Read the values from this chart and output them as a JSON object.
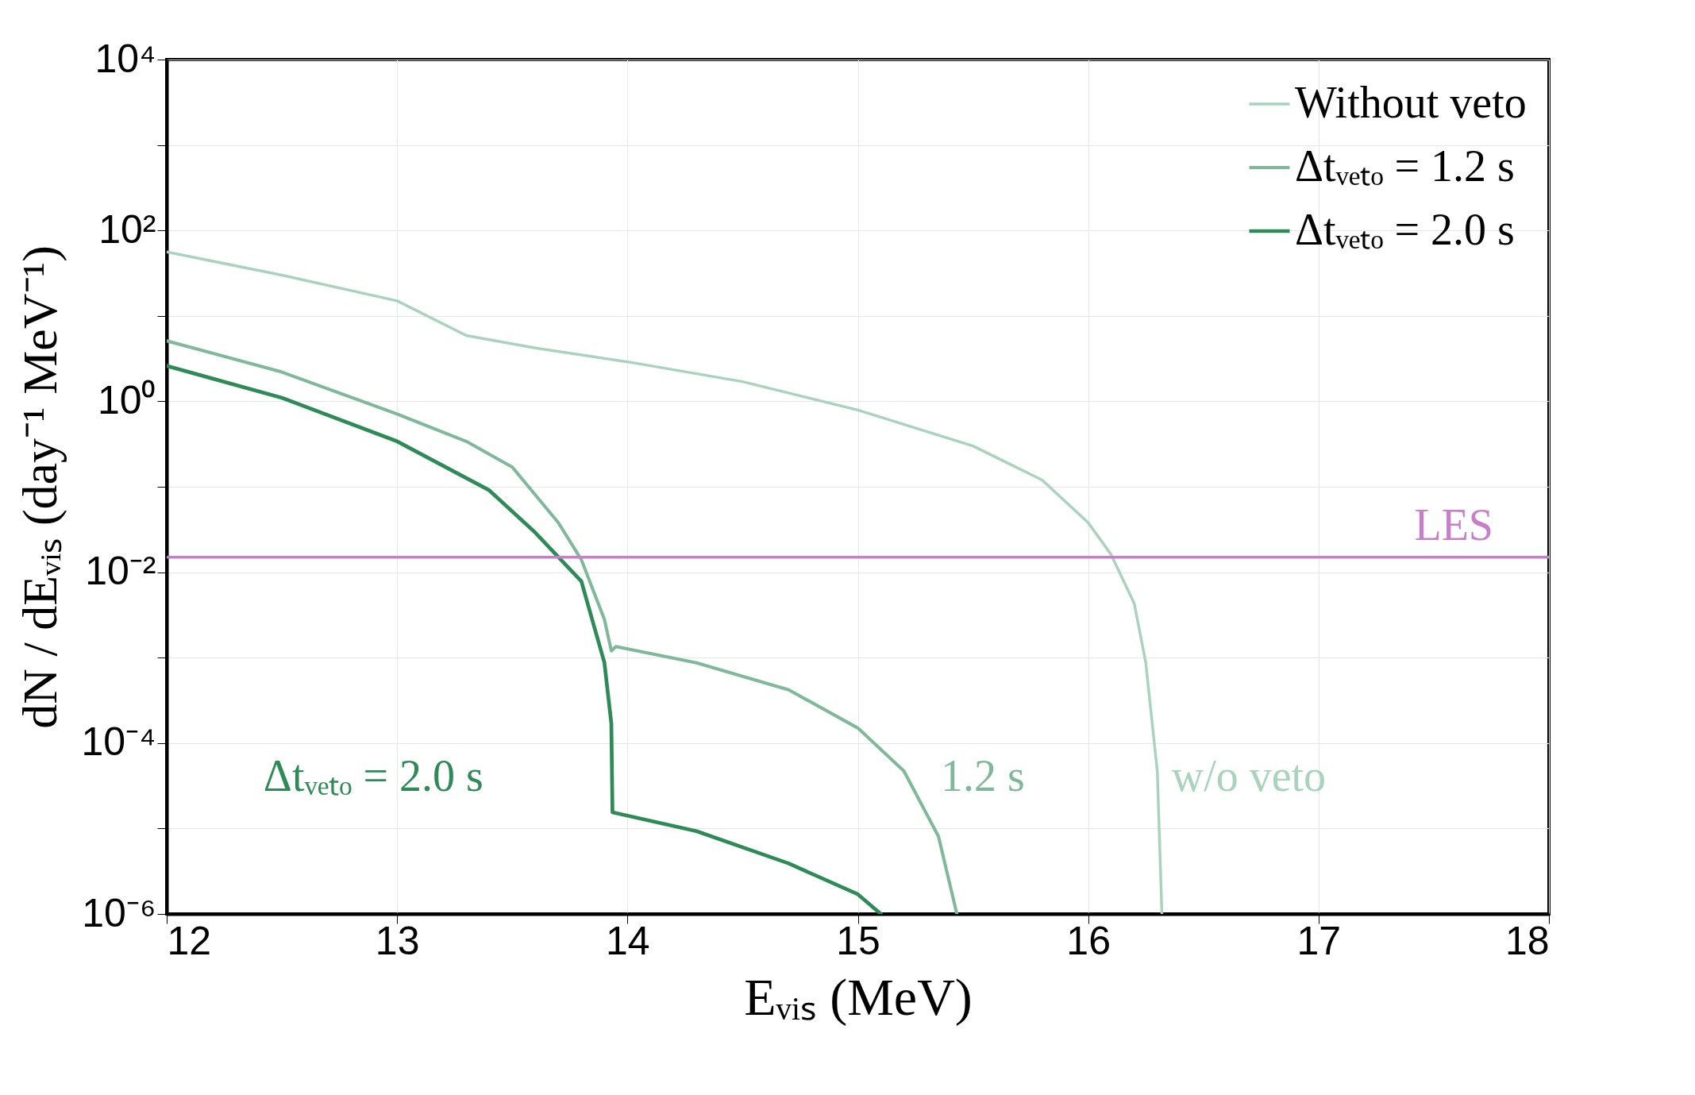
{
  "chart_data": {
    "type": "line",
    "xlabel": "Eᵥᵢₛ (MeV)",
    "ylabel": "dN / dEᵥᵢₛ (day⁻¹ MeV⁻¹)",
    "log": "y",
    "grid": true,
    "legend": "top right",
    "line_style": "solid",
    "marker": "none",
    "xlim": [
      12,
      18
    ],
    "xticks": [
      12,
      13,
      14,
      15,
      16,
      17,
      18
    ],
    "ylim": [
      1e-06,
      10000
    ],
    "yticks": [
      {
        "value": 1e-06,
        "label": "10⁻⁶"
      },
      {
        "value": 1e-05,
        "label": null
      },
      {
        "value": 0.0001,
        "label": "10⁻⁴"
      },
      {
        "value": 0.001,
        "label": null
      },
      {
        "value": 0.01,
        "label": "10⁻²"
      },
      {
        "value": 0.1,
        "label": null
      },
      {
        "value": 1,
        "label": "10⁰"
      },
      {
        "value": 10,
        "label": null
      },
      {
        "value": 100,
        "label": "10²"
      },
      {
        "value": 1000,
        "label": null
      },
      {
        "value": 10000,
        "label": "10⁴"
      }
    ],
    "series": [
      {
        "name": "Without veto",
        "color": "#a9d3bc",
        "x": [
          12,
          12.5,
          13,
          13.3,
          13.6,
          14,
          14.5,
          15,
          15.5,
          15.8,
          16,
          16.1,
          16.2,
          16.25,
          16.3,
          16.32
        ],
        "values": [
          56,
          30,
          15,
          5.9,
          4.2,
          2.9,
          1.7,
          0.79,
          0.3,
          0.12,
          0.038,
          0.016,
          0.0043,
          0.00087,
          4.7e-05,
          1e-06
        ]
      },
      {
        "name": "Δtᵥₑₜₒ = 1.2 s",
        "color": "#7fb99a",
        "x": [
          12,
          12.5,
          13,
          13.3,
          13.5,
          13.7,
          13.8,
          13.9,
          13.93,
          13.95,
          14.3,
          14.7,
          15,
          15.2,
          15.35,
          15.43
        ],
        "values": [
          5.1,
          2.2,
          0.71,
          0.34,
          0.17,
          0.038,
          0.014,
          0.0028,
          0.0012,
          0.00135,
          0.00087,
          0.00042,
          0.00015,
          4.7e-05,
          8.1e-06,
          1e-06
        ]
      },
      {
        "name": "Δtᵥₑₜₒ = 2.0 s",
        "color": "#2e8b57",
        "x": [
          12,
          12.5,
          13,
          13.4,
          13.6,
          13.8,
          13.9,
          13.93,
          13.935,
          14.3,
          14.7,
          15,
          15.1
        ],
        "values": [
          2.6,
          1.1,
          0.34,
          0.091,
          0.029,
          0.0078,
          0.00087,
          0.00017,
          1.55e-05,
          9.3e-06,
          3.9e-06,
          1.7e-06,
          1e-06
        ]
      }
    ],
    "ref_lines": [
      {
        "axis": "y",
        "value": 0.015,
        "label": "LES",
        "color": "#c77fc9"
      }
    ],
    "annotations": [
      "Δtᵥₑₜₒ = 2.0 s",
      "1.2 s",
      "w/o veto"
    ]
  }
}
